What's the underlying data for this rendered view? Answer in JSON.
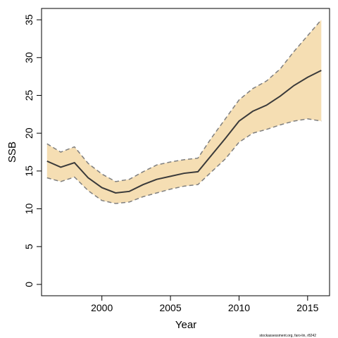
{
  "chart_data": {
    "type": "line",
    "title": "",
    "xlabel": "Year",
    "ylabel": "SSB",
    "xlim": [
      1995.6,
      2016.6
    ],
    "ylim": [
      -1.5,
      36.5
    ],
    "xticks": [
      2000,
      2005,
      2010,
      2015
    ],
    "yticks": [
      0,
      5,
      10,
      15,
      20,
      25,
      30,
      35
    ],
    "grid": false,
    "legend": "none",
    "x": [
      1996,
      1997,
      1998,
      1999,
      2000,
      2001,
      2002,
      2003,
      2004,
      2005,
      2006,
      2007,
      2008,
      2009,
      2010,
      2011,
      2012,
      2013,
      2014,
      2015,
      2016
    ],
    "series": [
      {
        "role": "estimate",
        "values": [
          16.3,
          15.5,
          16.1,
          14.1,
          12.8,
          12.1,
          12.3,
          13.2,
          13.9,
          14.3,
          14.7,
          14.9,
          17.1,
          19.3,
          21.6,
          22.9,
          23.7,
          24.9,
          26.3,
          27.4,
          28.3
        ]
      },
      {
        "role": "upper",
        "values": [
          18.6,
          17.5,
          18.2,
          16.0,
          14.6,
          13.6,
          13.9,
          14.9,
          15.8,
          16.2,
          16.5,
          16.7,
          19.4,
          21.9,
          24.4,
          25.9,
          26.9,
          28.5,
          30.8,
          32.9,
          35.0
        ]
      },
      {
        "role": "lower",
        "values": [
          14.1,
          13.6,
          14.2,
          12.4,
          11.1,
          10.7,
          10.9,
          11.6,
          12.1,
          12.6,
          13.0,
          13.2,
          14.9,
          16.6,
          18.8,
          20.0,
          20.5,
          21.1,
          21.6,
          21.9,
          21.6
        ]
      }
    ],
    "colors": {
      "band": "#f5deb3",
      "estimate": "#3a3a3a",
      "bounds": "#7f7f7f"
    }
  },
  "credit": "stockassessment.org, faro-lin, r8242"
}
